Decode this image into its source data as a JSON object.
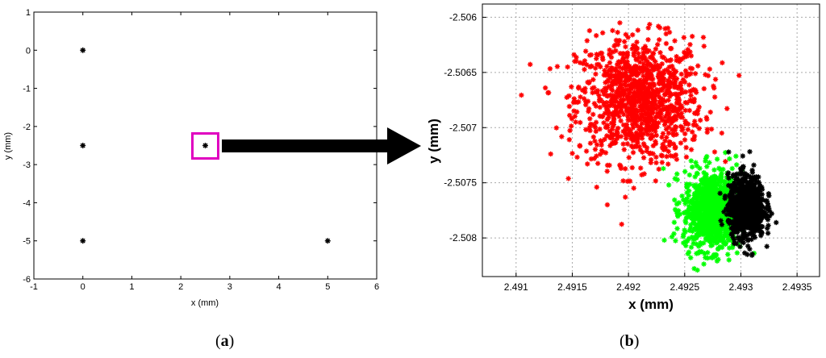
{
  "panel_labels": {
    "a": "a",
    "b": "b"
  },
  "colors": {
    "red_series": "#ff0000",
    "green_series": "#00ff00",
    "black_series": "#000000",
    "highlight_box": "#e000c0",
    "grid": "#aaaaaa"
  },
  "chart_data": [
    {
      "type": "scatter",
      "title": "",
      "xlabel": "x (mm)",
      "ylabel": "y (mm)",
      "xlim": [
        -1,
        6
      ],
      "ylim": [
        -6,
        1
      ],
      "xticks": [
        "-1",
        "0",
        "1",
        "2",
        "3",
        "4",
        "5",
        "6"
      ],
      "yticks": [
        "1",
        "0",
        "-1",
        "-2",
        "-3",
        "-4",
        "-5",
        "-6"
      ],
      "grid": false,
      "series": [
        {
          "points": [
            [
              0,
              0
            ],
            [
              0,
              -2.5
            ],
            [
              0,
              -5
            ],
            [
              2.5,
              -2.5
            ],
            [
              5,
              -5
            ]
          ],
          "color": "#000000",
          "marker": "star"
        }
      ],
      "highlight": {
        "x": 2.5,
        "y": -2.5,
        "color": "#e000c0"
      }
    },
    {
      "type": "scatter",
      "title": "",
      "xlabel": "x (mm)",
      "ylabel": "y (mm)",
      "xlim": [
        2.4907,
        2.4937
      ],
      "ylim": [
        -2.50835,
        -2.50588
      ],
      "xticks": [
        "2.491",
        "2.4915",
        "2.492",
        "2.4925",
        "2.493",
        "2.4935"
      ],
      "yticks": [
        "-2.506",
        "-2.5065",
        "-2.507",
        "-2.5075",
        "-2.508"
      ],
      "grid": true,
      "series": [
        {
          "color": "#ff0000",
          "marker": "star",
          "count": 1100,
          "center": [
            2.4921,
            -2.50675
          ],
          "std": [
            0.00028,
            0.00028
          ]
        },
        {
          "color": "#00ff00",
          "marker": "star",
          "count": 1000,
          "center": [
            2.49275,
            -2.50775
          ],
          "std": [
            0.00013,
            0.00018
          ]
        },
        {
          "color": "#000000",
          "marker": "star",
          "count": 900,
          "center": [
            2.49305,
            -2.50772
          ],
          "std": [
            8e-05,
            0.00014
          ]
        }
      ]
    }
  ]
}
